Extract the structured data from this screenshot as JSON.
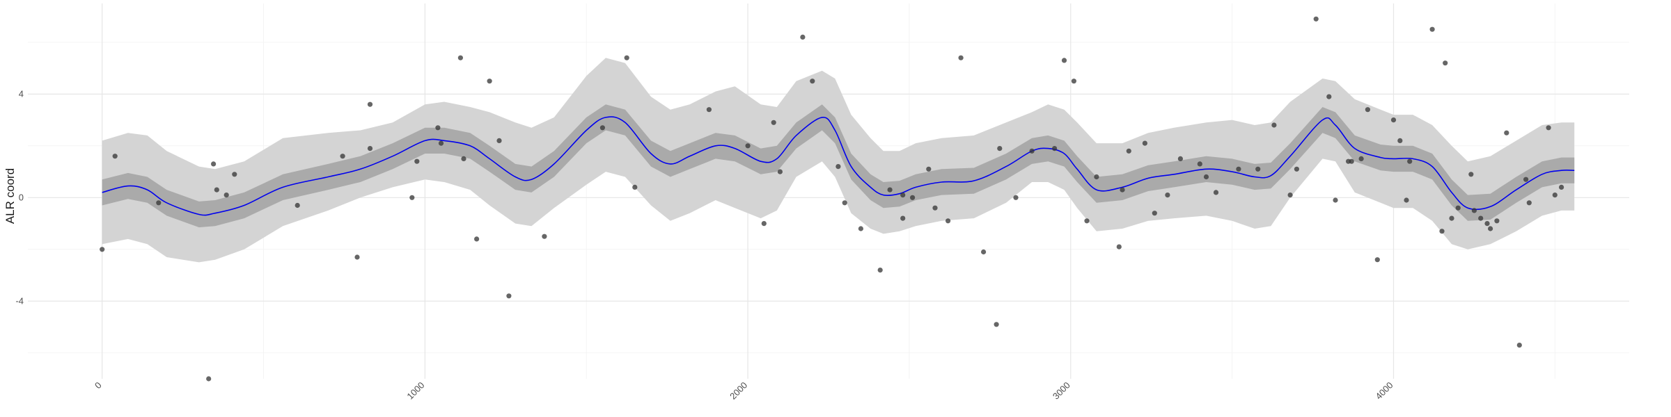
{
  "chart_data": {
    "type": "scatter",
    "title": "",
    "xlabel": "",
    "ylabel": "ALR coord",
    "xlim": [
      -230,
      4730
    ],
    "ylim": [
      -7.0,
      7.5
    ],
    "x_ticks": [
      0,
      1000,
      2000,
      3000,
      4000
    ],
    "y_ticks": [
      -4,
      0,
      4
    ],
    "grid": true,
    "legend": "none",
    "colors": {
      "line": "#0000ee",
      "inner_band": "#aaaaaa",
      "outer_band": "#d4d4d4",
      "points": "#333333",
      "grid_major": "#e6e6e6",
      "grid_minor": "#f2f2f2"
    },
    "smooth_line": {
      "x": [
        0,
        80,
        140,
        200,
        300,
        350,
        440,
        560,
        700,
        800,
        900,
        1000,
        1060,
        1140,
        1200,
        1280,
        1330,
        1400,
        1500,
        1560,
        1620,
        1700,
        1760,
        1820,
        1900,
        1960,
        2040,
        2090,
        2150,
        2230,
        2270,
        2320,
        2380,
        2420,
        2470,
        2520,
        2600,
        2700,
        2800,
        2880,
        2930,
        2980,
        3020,
        3080,
        3160,
        3240,
        3320,
        3420,
        3500,
        3570,
        3620,
        3680,
        3780,
        3820,
        3880,
        3960,
        4000,
        4060,
        4120,
        4180,
        4230,
        4300,
        4380,
        4460,
        4520,
        4560
      ],
      "y": [
        0.2,
        0.45,
        0.3,
        -0.2,
        -0.65,
        -0.6,
        -0.3,
        0.4,
        0.8,
        1.1,
        1.6,
        2.2,
        2.2,
        2.0,
        1.5,
        0.8,
        0.7,
        1.3,
        2.6,
        3.1,
        2.9,
        1.7,
        1.3,
        1.6,
        2.0,
        1.9,
        1.4,
        1.5,
        2.4,
        3.1,
        2.6,
        1.2,
        0.4,
        0.1,
        0.15,
        0.4,
        0.6,
        0.65,
        1.2,
        1.8,
        1.9,
        1.7,
        1.1,
        0.3,
        0.4,
        0.75,
        0.9,
        1.1,
        1.0,
        0.8,
        0.85,
        1.6,
        3.0,
        2.8,
        1.9,
        1.55,
        1.5,
        1.5,
        1.2,
        0.2,
        -0.4,
        -0.35,
        0.3,
        0.9,
        1.05,
        1.05
      ]
    },
    "inner_band": {
      "lower": [
        -0.3,
        -0.05,
        -0.2,
        -0.7,
        -1.15,
        -1.1,
        -0.8,
        -0.1,
        0.3,
        0.6,
        1.1,
        1.7,
        1.7,
        1.5,
        1.0,
        0.3,
        0.2,
        0.8,
        2.1,
        2.6,
        2.4,
        1.2,
        0.8,
        1.1,
        1.5,
        1.4,
        0.9,
        1.0,
        1.9,
        2.6,
        2.1,
        0.7,
        -0.1,
        -0.4,
        -0.35,
        -0.1,
        0.1,
        0.15,
        0.7,
        1.3,
        1.4,
        1.2,
        0.6,
        -0.2,
        -0.1,
        0.25,
        0.4,
        0.6,
        0.5,
        0.3,
        0.35,
        1.1,
        2.5,
        2.3,
        1.4,
        1.05,
        1.0,
        1.0,
        0.7,
        -0.3,
        -0.9,
        -0.85,
        -0.2,
        0.4,
        0.55,
        0.55
      ],
      "upper": [
        0.7,
        0.95,
        0.8,
        0.3,
        -0.15,
        -0.1,
        0.2,
        0.9,
        1.3,
        1.6,
        2.1,
        2.7,
        2.7,
        2.5,
        2.0,
        1.3,
        1.2,
        1.8,
        3.1,
        3.6,
        3.4,
        2.2,
        1.8,
        2.1,
        2.5,
        2.4,
        1.9,
        2.0,
        2.9,
        3.6,
        3.1,
        1.7,
        0.9,
        0.6,
        0.65,
        0.9,
        1.1,
        1.15,
        1.7,
        2.3,
        2.4,
        2.2,
        1.6,
        0.8,
        0.9,
        1.25,
        1.4,
        1.6,
        1.5,
        1.3,
        1.35,
        2.1,
        3.5,
        3.3,
        2.4,
        2.05,
        2.0,
        2.0,
        1.7,
        0.7,
        0.1,
        0.15,
        0.8,
        1.4,
        1.55,
        1.55
      ]
    },
    "outer_band": {
      "lower": [
        -1.8,
        -1.6,
        -1.8,
        -2.3,
        -2.5,
        -2.4,
        -2.0,
        -1.1,
        -0.5,
        0.0,
        0.4,
        0.7,
        0.6,
        0.3,
        -0.3,
        -1.0,
        -1.1,
        -0.4,
        0.5,
        1.0,
        0.8,
        -0.3,
        -0.9,
        -0.6,
        -0.1,
        -0.4,
        -0.8,
        -0.5,
        0.8,
        1.4,
        0.8,
        -0.6,
        -1.2,
        -1.4,
        -1.3,
        -1.1,
        -0.9,
        -0.8,
        -0.2,
        0.6,
        0.6,
        0.3,
        -0.4,
        -1.3,
        -1.2,
        -0.9,
        -0.8,
        -0.7,
        -0.9,
        -1.2,
        -1.1,
        0.0,
        1.5,
        1.4,
        0.2,
        -0.2,
        -0.4,
        -0.4,
        -0.9,
        -1.8,
        -2.0,
        -1.8,
        -1.3,
        -0.7,
        -0.5,
        -0.5
      ],
      "upper": [
        2.2,
        2.5,
        2.4,
        1.8,
        1.2,
        1.1,
        1.4,
        2.3,
        2.5,
        2.6,
        2.9,
        3.6,
        3.7,
        3.5,
        3.3,
        2.9,
        2.7,
        3.1,
        4.7,
        5.4,
        5.2,
        3.9,
        3.4,
        3.6,
        4.1,
        4.3,
        3.6,
        3.5,
        4.5,
        4.9,
        4.6,
        3.2,
        2.3,
        1.8,
        1.8,
        2.1,
        2.3,
        2.4,
        2.9,
        3.3,
        3.6,
        3.4,
        2.9,
        2.1,
        2.1,
        2.5,
        2.7,
        2.9,
        3.0,
        2.8,
        2.9,
        3.7,
        4.6,
        4.5,
        3.8,
        3.4,
        3.2,
        3.2,
        2.8,
        2.0,
        1.4,
        1.6,
        2.2,
        2.8,
        2.9,
        2.9
      ]
    },
    "points": {
      "x": [
        0,
        40,
        175,
        330,
        345,
        355,
        385,
        410,
        605,
        745,
        790,
        830,
        830,
        960,
        975,
        1040,
        1050,
        1110,
        1120,
        1160,
        1200,
        1230,
        1260,
        1370,
        1550,
        1625,
        1650,
        1880,
        2000,
        2050,
        2080,
        2100,
        2170,
        2200,
        2280,
        2300,
        2350,
        2410,
        2440,
        2480,
        2480,
        2510,
        2560,
        2580,
        2620,
        2660,
        2730,
        2770,
        2780,
        2830,
        2880,
        2950,
        2980,
        3010,
        3050,
        3080,
        3150,
        3160,
        3180,
        3230,
        3260,
        3300,
        3340,
        3400,
        3420,
        3450,
        3520,
        3580,
        3630,
        3680,
        3700,
        3760,
        3800,
        3820,
        3860,
        3870,
        3900,
        3920,
        3950,
        4000,
        4020,
        4040,
        4050,
        4120,
        4150,
        4160,
        4180,
        4200,
        4240,
        4250,
        4270,
        4290,
        4300,
        4320,
        4350,
        4390,
        4410,
        4420,
        4480,
        4500,
        4520
      ],
      "y": [
        -2.0,
        1.6,
        -0.2,
        -7.0,
        1.3,
        0.3,
        0.1,
        0.9,
        -0.3,
        1.6,
        -2.3,
        1.9,
        3.6,
        0.0,
        1.4,
        2.7,
        2.1,
        5.4,
        1.5,
        -1.6,
        4.5,
        2.2,
        -3.8,
        -1.5,
        2.7,
        5.4,
        0.4,
        3.4,
        2.0,
        -1.0,
        2.9,
        1.0,
        6.2,
        4.5,
        1.2,
        -0.2,
        -1.2,
        -2.8,
        0.3,
        0.1,
        -0.8,
        0.0,
        1.1,
        -0.4,
        -0.9,
        5.4,
        -2.1,
        -4.9,
        1.9,
        0.0,
        1.8,
        1.9,
        5.3,
        4.5,
        -0.9,
        0.8,
        -1.9,
        0.3,
        1.8,
        2.1,
        -0.6,
        0.1,
        1.5,
        1.3,
        0.8,
        0.2,
        1.1,
        1.1,
        2.8,
        0.1,
        1.1,
        6.9,
        3.9,
        -0.1,
        1.4,
        1.4,
        1.5,
        3.4,
        -2.4,
        3.0,
        2.2,
        -0.1,
        1.4,
        6.5,
        -1.3,
        5.2,
        -0.8,
        -0.4,
        0.9,
        -0.5,
        -0.8,
        -1.0,
        -1.2,
        -0.9,
        2.5,
        -5.7,
        0.7,
        -0.2,
        2.7,
        0.1,
        0.4
      ]
    }
  }
}
